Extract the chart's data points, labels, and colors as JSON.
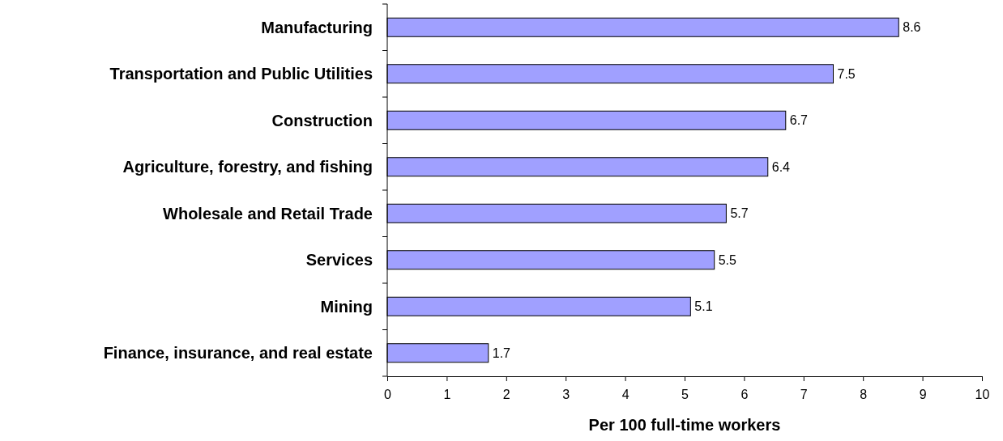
{
  "chart_data": {
    "type": "bar",
    "orientation": "horizontal",
    "xlabel": "Per 100 full-time workers",
    "categories": [
      "Manufacturing",
      "Transportation and Public Utilities",
      "Construction",
      "Agriculture, forestry, and fishing",
      "Wholesale and Retail Trade",
      "Services",
      "Mining",
      "Finance, insurance, and real estate"
    ],
    "values": [
      8.6,
      7.5,
      6.7,
      6.4,
      5.7,
      5.5,
      5.1,
      1.7
    ],
    "color": "#a0a0ff",
    "xlim": [
      0,
      10
    ],
    "xticks": [
      0,
      1,
      2,
      3,
      4,
      5,
      6,
      7,
      8,
      9,
      10
    ],
    "data_labels": true
  }
}
